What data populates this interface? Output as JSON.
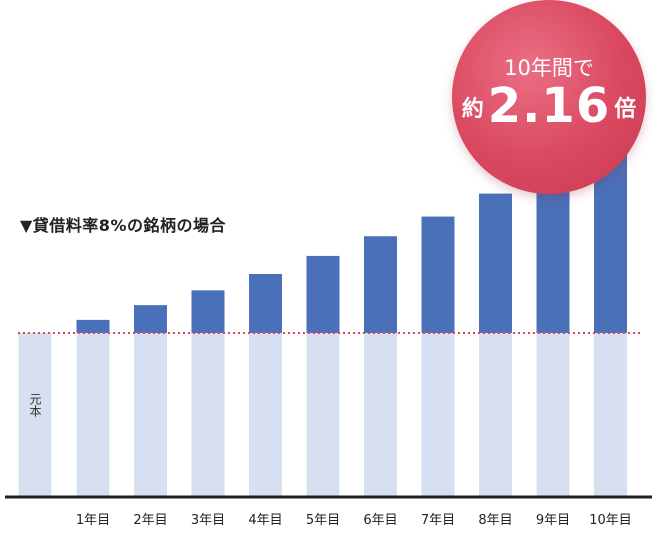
{
  "chart_data": {
    "type": "bar",
    "title": "",
    "subtitle": "▼貸借料率8%の銘柄の場合",
    "base_label": "元本",
    "categories": [
      "1年目",
      "2年目",
      "3年目",
      "4年目",
      "5年目",
      "6年目",
      "7年目",
      "8年目",
      "9年目",
      "10年目"
    ],
    "series": [
      {
        "values": [
          1.08,
          1.17,
          1.26,
          1.36,
          1.47,
          1.59,
          1.71,
          1.85,
          2.0,
          2.16
        ]
      }
    ],
    "base_value": 1.0,
    "ylim": [
      0,
      2.16
    ],
    "colors": {
      "base": "#d6e0f1",
      "gain": "#4a70b9",
      "baseline": "#d9485f"
    },
    "callout": {
      "line1": "10年間で",
      "prefix": "約",
      "value": "2.16",
      "suffix": "倍"
    }
  }
}
